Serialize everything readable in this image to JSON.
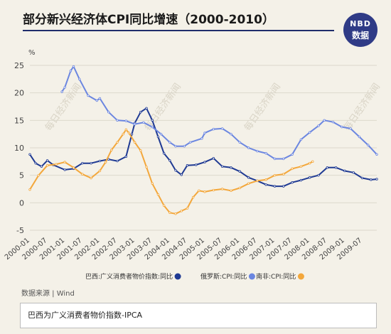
{
  "title": "部分新兴经济体CPI同比增速（2000-2010）",
  "logo": {
    "line1": "NBD",
    "line2": "数据"
  },
  "source": "数据来源 | Wind",
  "note": "巴西为广义消费者物价指数-IPCA",
  "chart_data": {
    "type": "line",
    "unit": "%",
    "ylim": [
      -5,
      25
    ],
    "yticks": [
      -5,
      0,
      5,
      10,
      15,
      20,
      25
    ],
    "grid": true,
    "legend_position": "bottom",
    "watermark": "每日经济新闻",
    "x_ticks": [
      "2000-01",
      "2000-07",
      "2001-01",
      "2001-07",
      "2002-01",
      "2002-07",
      "2003-01",
      "2003-07",
      "2004-01",
      "2004-07",
      "2005-01",
      "2005-07",
      "2006-01",
      "2006-07",
      "2007-01",
      "2007-07",
      "2008-01",
      "2008-07",
      "2009-01",
      "2009-07"
    ],
    "series": [
      {
        "name": "巴西:广义消费者物价指数:同比",
        "color": "#1f3a93",
        "points": [
          [
            "2000-01",
            8.8
          ],
          [
            "2000-03",
            7.2
          ],
          [
            "2000-05",
            6.6
          ],
          [
            "2000-07",
            7.7
          ],
          [
            "2000-09",
            6.9
          ],
          [
            "2001-01",
            6.0
          ],
          [
            "2001-04",
            6.2
          ],
          [
            "2001-07",
            7.2
          ],
          [
            "2001-10",
            7.2
          ],
          [
            "2002-01",
            7.6
          ],
          [
            "2002-04",
            7.9
          ],
          [
            "2002-07",
            7.6
          ],
          [
            "2002-10",
            8.4
          ],
          [
            "2002-12",
            12.5
          ],
          [
            "2003-01",
            14.5
          ],
          [
            "2003-03",
            16.5
          ],
          [
            "2003-05",
            17.2
          ],
          [
            "2003-07",
            15.0
          ],
          [
            "2003-09",
            12.0
          ],
          [
            "2003-11",
            9.0
          ],
          [
            "2004-01",
            7.7
          ],
          [
            "2004-03",
            5.9
          ],
          [
            "2004-05",
            5.1
          ],
          [
            "2004-07",
            6.8
          ],
          [
            "2004-10",
            6.9
          ],
          [
            "2005-01",
            7.4
          ],
          [
            "2005-04",
            8.1
          ],
          [
            "2005-07",
            6.6
          ],
          [
            "2005-10",
            6.4
          ],
          [
            "2006-01",
            5.7
          ],
          [
            "2006-04",
            4.6
          ],
          [
            "2006-07",
            4.0
          ],
          [
            "2006-10",
            3.3
          ],
          [
            "2007-01",
            3.0
          ],
          [
            "2007-04",
            3.0
          ],
          [
            "2007-07",
            3.7
          ],
          [
            "2007-10",
            4.1
          ],
          [
            "2008-01",
            4.6
          ],
          [
            "2008-04",
            5.0
          ],
          [
            "2008-07",
            6.4
          ],
          [
            "2008-10",
            6.4
          ],
          [
            "2009-01",
            5.8
          ],
          [
            "2009-04",
            5.5
          ],
          [
            "2009-07",
            4.5
          ],
          [
            "2009-10",
            4.2
          ],
          [
            "2009-12",
            4.3
          ]
        ]
      },
      {
        "name": "俄罗斯:CPI:同比",
        "color": "#6b86e0",
        "points": [
          [
            "2000-12",
            20.2
          ],
          [
            "2001-01",
            21.0
          ],
          [
            "2001-03",
            24.0
          ],
          [
            "2001-04",
            24.8
          ],
          [
            "2001-06",
            22.5
          ],
          [
            "2001-09",
            19.5
          ],
          [
            "2001-12",
            18.6
          ],
          [
            "2002-01",
            19.0
          ],
          [
            "2002-04",
            16.5
          ],
          [
            "2002-07",
            15.0
          ],
          [
            "2002-10",
            14.9
          ],
          [
            "2003-01",
            14.3
          ],
          [
            "2003-04",
            14.6
          ],
          [
            "2003-07",
            13.8
          ],
          [
            "2003-10",
            12.5
          ],
          [
            "2004-01",
            11.0
          ],
          [
            "2004-03",
            10.3
          ],
          [
            "2004-06",
            10.3
          ],
          [
            "2004-08",
            11.0
          ],
          [
            "2004-12",
            11.7
          ],
          [
            "2005-01",
            12.7
          ],
          [
            "2005-04",
            13.4
          ],
          [
            "2005-07",
            13.5
          ],
          [
            "2005-10",
            12.5
          ],
          [
            "2006-01",
            11.0
          ],
          [
            "2006-04",
            10.0
          ],
          [
            "2006-07",
            9.4
          ],
          [
            "2006-10",
            9.0
          ],
          [
            "2007-01",
            8.0
          ],
          [
            "2007-04",
            8.0
          ],
          [
            "2007-07",
            8.8
          ],
          [
            "2007-10",
            11.5
          ],
          [
            "2008-01",
            12.8
          ],
          [
            "2008-04",
            14.0
          ],
          [
            "2008-06",
            15.0
          ],
          [
            "2008-09",
            14.7
          ],
          [
            "2008-12",
            13.8
          ],
          [
            "2009-03",
            13.5
          ],
          [
            "2009-06",
            12.0
          ],
          [
            "2009-09",
            10.5
          ],
          [
            "2009-12",
            8.8
          ]
        ]
      },
      {
        "name": "南非:CPI:同比",
        "color": "#f3a73b",
        "points": [
          [
            "2000-01",
            2.4
          ],
          [
            "2000-04",
            5.0
          ],
          [
            "2000-07",
            6.8
          ],
          [
            "2000-10",
            7.0
          ],
          [
            "2001-01",
            7.4
          ],
          [
            "2001-04",
            6.4
          ],
          [
            "2001-07",
            5.2
          ],
          [
            "2001-10",
            4.5
          ],
          [
            "2002-01",
            5.8
          ],
          [
            "2002-03",
            7.4
          ],
          [
            "2002-05",
            9.6
          ],
          [
            "2002-07",
            11.0
          ],
          [
            "2002-09",
            12.5
          ],
          [
            "2002-10",
            13.3
          ],
          [
            "2002-11",
            12.7
          ],
          [
            "2003-01",
            11.0
          ],
          [
            "2003-03",
            9.5
          ],
          [
            "2003-05",
            6.5
          ],
          [
            "2003-07",
            3.5
          ],
          [
            "2003-09",
            1.5
          ],
          [
            "2003-11",
            -0.5
          ],
          [
            "2004-01",
            -1.8
          ],
          [
            "2004-03",
            -2.0
          ],
          [
            "2004-05",
            -1.5
          ],
          [
            "2004-07",
            -1.0
          ],
          [
            "2004-09",
            1.0
          ],
          [
            "2004-11",
            2.2
          ],
          [
            "2005-01",
            2.0
          ],
          [
            "2005-04",
            2.3
          ],
          [
            "2005-07",
            2.5
          ],
          [
            "2005-10",
            2.2
          ],
          [
            "2006-01",
            2.7
          ],
          [
            "2006-04",
            3.5
          ],
          [
            "2006-07",
            4.0
          ],
          [
            "2006-10",
            4.2
          ],
          [
            "2007-01",
            5.0
          ],
          [
            "2007-04",
            5.2
          ],
          [
            "2007-07",
            6.2
          ],
          [
            "2007-10",
            6.6
          ],
          [
            "2008-01",
            7.2
          ],
          [
            "2008-02",
            7.5
          ]
        ]
      }
    ]
  }
}
